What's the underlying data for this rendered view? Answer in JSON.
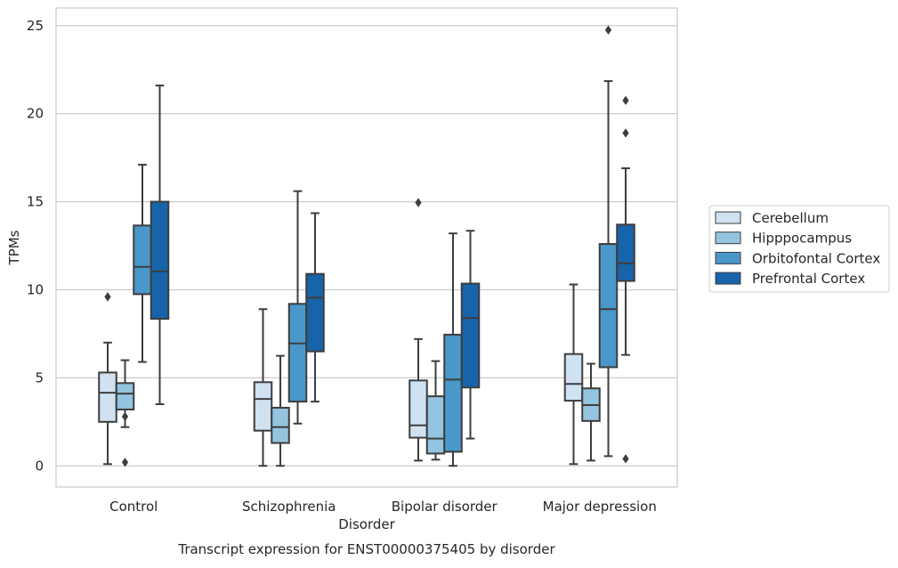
{
  "chart_data": {
    "type": "box",
    "title": "",
    "caption": "Transcript expression for ENST00000375405 by disorder",
    "xlabel": "Disorder",
    "ylabel": "TPMs",
    "ylim": [
      -1.2,
      26
    ],
    "yticks": [
      0,
      5,
      10,
      15,
      20,
      25
    ],
    "grid": true,
    "legend_position": "right",
    "categories": [
      "Control",
      "Schizophrenia",
      "Bipolar disorder",
      "Major depression"
    ],
    "series": [
      {
        "name": "Cerebellum",
        "color": "#d0e1f2",
        "boxes": [
          {
            "whisker_low": 0.1,
            "q1": 2.5,
            "median": 4.15,
            "q3": 5.3,
            "whisker_high": 7.0,
            "outliers": [
              9.6
            ]
          },
          {
            "whisker_low": 0.0,
            "q1": 2.0,
            "median": 3.8,
            "q3": 4.75,
            "whisker_high": 8.9,
            "outliers": []
          },
          {
            "whisker_low": 0.3,
            "q1": 1.6,
            "median": 2.3,
            "q3": 4.85,
            "whisker_high": 7.2,
            "outliers": [
              14.95
            ]
          },
          {
            "whisker_low": 0.1,
            "q1": 3.7,
            "median": 4.65,
            "q3": 6.35,
            "whisker_high": 10.3,
            "outliers": []
          }
        ]
      },
      {
        "name": "Hipppocampus",
        "color": "#94c4df",
        "boxes": [
          {
            "whisker_low": 2.2,
            "q1": 3.2,
            "median": 4.1,
            "q3": 4.7,
            "whisker_high": 6.0,
            "outliers": [
              0.2,
              2.8
            ]
          },
          {
            "whisker_low": 0.0,
            "q1": 1.3,
            "median": 2.2,
            "q3": 3.3,
            "whisker_high": 6.25,
            "outliers": []
          },
          {
            "whisker_low": 0.35,
            "q1": 0.7,
            "median": 1.55,
            "q3": 3.95,
            "whisker_high": 5.95,
            "outliers": []
          },
          {
            "whisker_low": 0.3,
            "q1": 2.55,
            "median": 3.45,
            "q3": 4.4,
            "whisker_high": 5.8,
            "outliers": []
          }
        ]
      },
      {
        "name": "Orbitofontal Cortex",
        "color": "#4a98c9",
        "boxes": [
          {
            "whisker_low": 5.9,
            "q1": 9.75,
            "median": 11.3,
            "q3": 13.65,
            "whisker_high": 17.1,
            "outliers": []
          },
          {
            "whisker_low": 2.4,
            "q1": 3.65,
            "median": 6.95,
            "q3": 9.2,
            "whisker_high": 15.6,
            "outliers": []
          },
          {
            "whisker_low": 0.0,
            "q1": 0.8,
            "median": 4.9,
            "q3": 7.45,
            "whisker_high": 13.2,
            "outliers": []
          },
          {
            "whisker_low": 0.55,
            "q1": 5.6,
            "median": 8.9,
            "q3": 12.6,
            "whisker_high": 21.85,
            "outliers": [
              24.75
            ]
          }
        ]
      },
      {
        "name": "Prefrontal Cortex",
        "color": "#1764ab",
        "boxes": [
          {
            "whisker_low": 3.5,
            "q1": 8.35,
            "median": 11.05,
            "q3": 15.0,
            "whisker_high": 21.6,
            "outliers": []
          },
          {
            "whisker_low": 3.65,
            "q1": 6.5,
            "median": 9.55,
            "q3": 10.9,
            "whisker_high": 14.35,
            "outliers": []
          },
          {
            "whisker_low": 1.55,
            "q1": 4.45,
            "median": 8.4,
            "q3": 10.35,
            "whisker_high": 13.35,
            "outliers": []
          },
          {
            "whisker_low": 6.3,
            "q1": 10.5,
            "median": 11.5,
            "q3": 13.7,
            "whisker_high": 16.9,
            "outliers": [
              0.4,
              18.9,
              20.75
            ]
          }
        ]
      }
    ]
  }
}
